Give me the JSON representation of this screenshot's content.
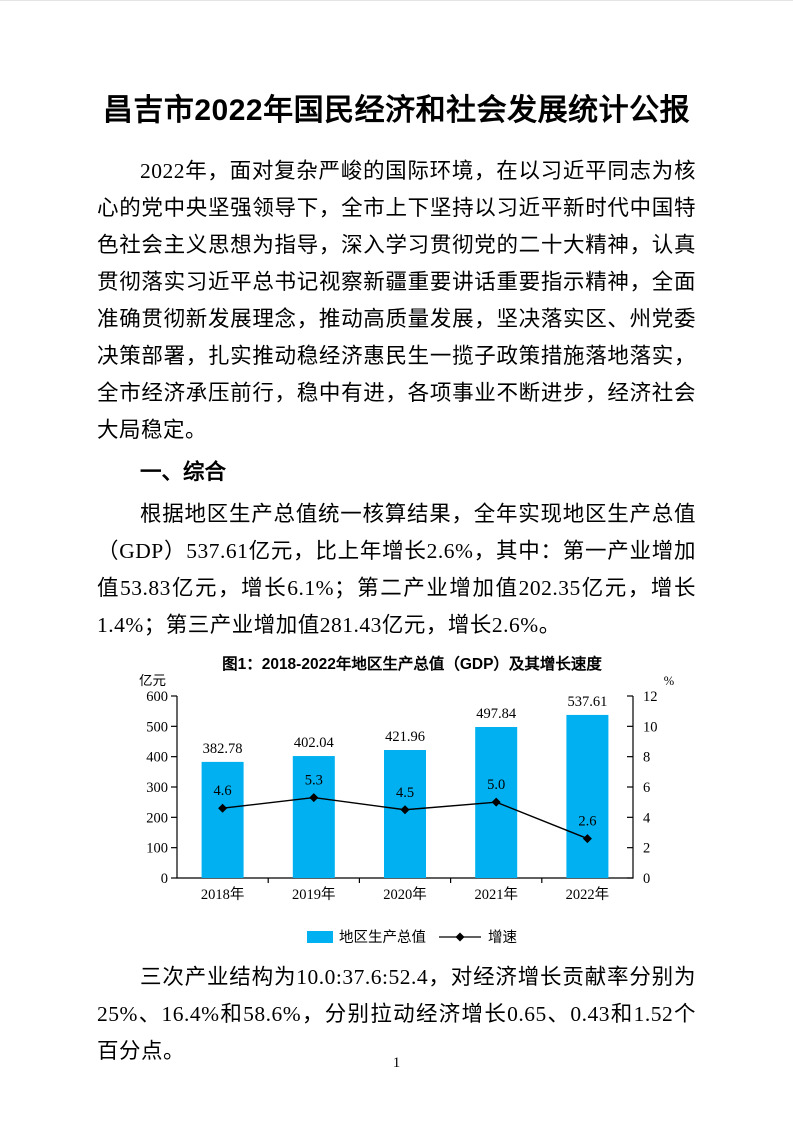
{
  "document": {
    "title": "昌吉市2022年国民经济和社会发展统计公报",
    "paragraph_intro": "2022年，面对复杂严峻的国际环境，在以习近平同志为核心的党中央坚强领导下，全市上下坚持以习近平新时代中国特色社会主义思想为指导，深入学习贯彻党的二十大精神，认真贯彻落实习近平总书记视察新疆重要讲话重要指示精神，全面准确贯彻新发展理念，推动高质量发展，坚决落实区、州党委决策部署，扎实推动稳经济惠民生一揽子政策措施落地落实，全市经济承压前行，稳中有进，各项事业不断进步，经济社会大局稳定。",
    "section_heading": "一、综合",
    "paragraph_gdp": "根据地区生产总值统一核算结果，全年实现地区生产总值（GDP）537.61亿元，比上年增长2.6%，其中：第一产业增加值53.83亿元，增长6.1%；第二产业增加值202.35亿元，增长1.4%；第三产业增加值281.43亿元，增长2.6%。",
    "paragraph_structure": "三次产业结构为10.0:37.6:52.4，对经济增长贡献率分别为25%、16.4%和58.6%，分别拉动经济增长0.65、0.43和1.52个百分点。",
    "page_number": "1"
  },
  "chart_data": {
    "type": "bar",
    "combo": "bar+line",
    "title": "图1：2018-2022年地区生产总值（GDP）及其增长速度",
    "categories": [
      "2018年",
      "2019年",
      "2020年",
      "2021年",
      "2022年"
    ],
    "series": [
      {
        "name": "地区生产总值",
        "type": "bar",
        "axis": "left",
        "color": "#00B0F0",
        "values": [
          382.78,
          402.04,
          421.96,
          497.84,
          537.61
        ]
      },
      {
        "name": "增速",
        "type": "line",
        "axis": "right",
        "color": "#000000",
        "marker": "diamond",
        "values": [
          4.6,
          5.3,
          4.5,
          5.0,
          2.6
        ]
      }
    ],
    "left_axis": {
      "label": "亿元",
      "min": 0,
      "max": 600,
      "step": 100
    },
    "right_axis": {
      "label": "%",
      "min": 0,
      "max": 12,
      "step": 2
    },
    "legend_position": "bottom",
    "grid": false
  }
}
